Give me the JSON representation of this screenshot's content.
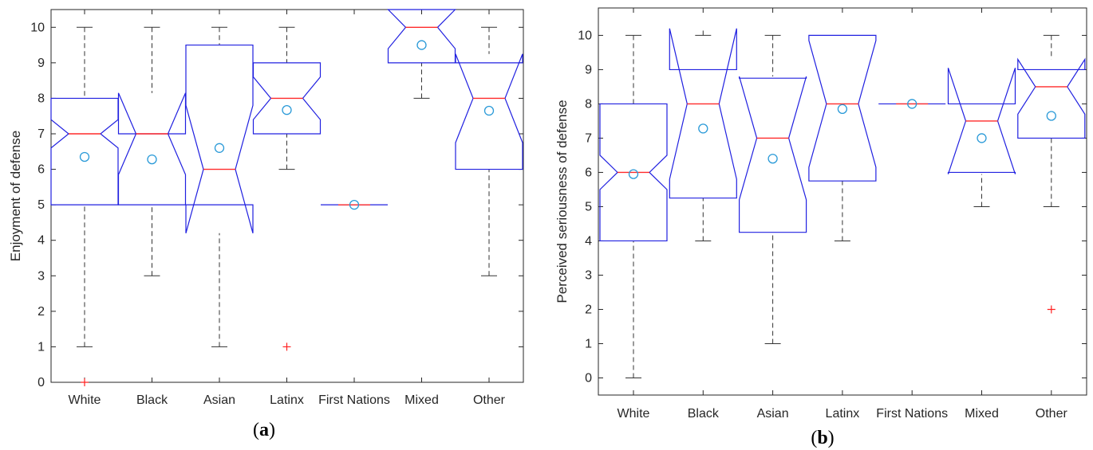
{
  "chart_data": [
    {
      "type": "boxplot",
      "panel_caption": {
        "open": "(",
        "letter": "a",
        "close": ")"
      },
      "ylabel": "Enjoyment of defense",
      "xlabel": "",
      "ylim": [
        0,
        10.5
      ],
      "yticks": [
        "0",
        "1",
        "2",
        "3",
        "4",
        "5",
        "6",
        "7",
        "8",
        "9",
        "10"
      ],
      "categories": [
        "White",
        "Black",
        "Asian",
        "Latinx",
        "First Nations",
        "Mixed",
        "Other"
      ],
      "boxes": [
        {
          "q1": 5,
          "median": 7,
          "q3": 8,
          "whisker_low": 1,
          "whisker_high": 10,
          "notch_low": 6.6,
          "notch_high": 7.4,
          "mean": 6.35,
          "outliers": [
            0
          ]
        },
        {
          "q1": 5,
          "median": 7,
          "q3": 7,
          "whisker_low": 3,
          "whisker_high": 10,
          "notch_low": 5.85,
          "notch_high": 8.15,
          "mean": 6.28,
          "outliers": []
        },
        {
          "q1": 5,
          "median": 6,
          "q3": 9.5,
          "whisker_low": 1,
          "whisker_high": 10,
          "notch_low": 4.2,
          "notch_high": 7.8,
          "mean": 6.6,
          "outliers": []
        },
        {
          "q1": 7,
          "median": 8,
          "q3": 9,
          "whisker_low": 6,
          "whisker_high": 10,
          "notch_low": 7.4,
          "notch_high": 8.6,
          "mean": 7.67,
          "outliers": [
            1
          ]
        },
        {
          "q1": 5,
          "median": 5,
          "q3": 5,
          "whisker_low": 5,
          "whisker_high": 5,
          "notch_low": 5,
          "notch_high": 5,
          "mean": 5,
          "outliers": []
        },
        {
          "q1": 9,
          "median": 10,
          "q3": 10.8,
          "whisker_low": 8,
          "whisker_high": 10.8,
          "notch_low": 9.4,
          "notch_high": 10.6,
          "mean": 9.5,
          "outliers": []
        },
        {
          "q1": 6,
          "median": 8,
          "q3": 9,
          "whisker_low": 3,
          "whisker_high": 10,
          "notch_low": 6.75,
          "notch_high": 9.25,
          "mean": 7.65,
          "outliers": []
        }
      ]
    },
    {
      "type": "boxplot",
      "panel_caption": {
        "open": "(",
        "letter": "b",
        "close": ")"
      },
      "ylabel": "Perceived seriousness of defense",
      "xlabel": "",
      "ylim": [
        -0.5,
        10.8
      ],
      "yticks": [
        "0",
        "1",
        "2",
        "3",
        "4",
        "5",
        "6",
        "7",
        "8",
        "9",
        "10"
      ],
      "categories": [
        "White",
        "Black",
        "Asian",
        "Latinx",
        "First Nations",
        "Mixed",
        "Other"
      ],
      "boxes": [
        {
          "q1": 4,
          "median": 6,
          "q3": 8,
          "whisker_low": 0,
          "whisker_high": 10,
          "notch_low": 5.5,
          "notch_high": 6.5,
          "mean": 5.95,
          "outliers": []
        },
        {
          "q1": 5.25,
          "median": 8,
          "q3": 9,
          "whisker_low": 4,
          "whisker_high": 10,
          "notch_low": 5.8,
          "notch_high": 10.2,
          "mean": 7.28,
          "outliers": []
        },
        {
          "q1": 4.25,
          "median": 7,
          "q3": 8.75,
          "whisker_low": 1,
          "whisker_high": 10,
          "notch_low": 5.2,
          "notch_high": 8.8,
          "mean": 6.4,
          "outliers": []
        },
        {
          "q1": 5.75,
          "median": 8,
          "q3": 10,
          "whisker_low": 4,
          "whisker_high": 10,
          "notch_low": 6.15,
          "notch_high": 9.85,
          "mean": 7.85,
          "outliers": []
        },
        {
          "q1": 8,
          "median": 8,
          "q3": 8,
          "whisker_low": 8,
          "whisker_high": 8,
          "notch_low": 8,
          "notch_high": 8,
          "mean": 8,
          "outliers": []
        },
        {
          "q1": 6,
          "median": 7.5,
          "q3": 8,
          "whisker_low": 5,
          "whisker_high": 8,
          "notch_low": 5.95,
          "notch_high": 9.05,
          "mean": 7,
          "outliers": []
        },
        {
          "q1": 7,
          "median": 8.5,
          "q3": 9,
          "whisker_low": 5,
          "whisker_high": 10,
          "notch_low": 7.7,
          "notch_high": 9.3,
          "mean": 7.65,
          "outliers": [
            2
          ]
        }
      ]
    }
  ],
  "colors": {
    "box": "#2020e0",
    "median": "#ff2a2a",
    "mean": "#2a9ad8",
    "whisker": "#333333",
    "outlier": "#ff2020",
    "axis": "#262626"
  }
}
